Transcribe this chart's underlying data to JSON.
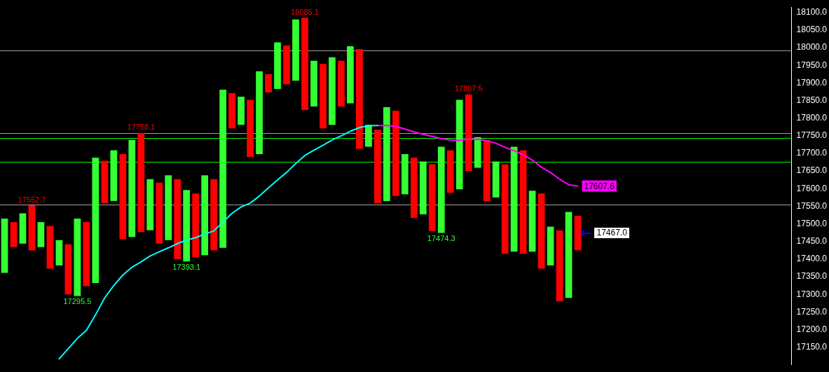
{
  "chart_data": {
    "type": "bar",
    "categories": [
      null,
      null,
      null,
      null,
      null,
      null,
      null,
      null,
      null,
      null,
      null,
      null,
      null,
      null,
      null,
      null,
      null,
      null,
      null,
      null,
      null,
      null,
      null,
      null,
      null,
      null,
      null,
      null,
      null,
      null,
      null,
      null,
      null,
      null,
      null,
      null,
      null,
      null,
      null,
      null,
      null,
      null,
      null,
      null,
      null,
      null,
      null,
      null,
      null,
      null,
      null,
      null,
      null,
      null,
      null,
      null,
      null,
      null,
      null,
      null,
      null,
      null,
      null,
      null,
      null,
      null,
      null,
      null,
      null,
      null,
      null,
      null,
      null,
      null,
      null,
      null,
      null,
      null,
      null,
      null,
      null,
      null,
      null,
      null,
      null,
      null,
      null
    ],
    "series": [
      {
        "values": [
          154,
          71,
          86,
          127.7,
          71,
          121,
          72,
          142,
          219.5,
          182,
          356,
          120,
          144,
          241,
          275,
          281.1,
          145,
          173,
          184,
          227,
          202.9,
          181,
          227,
          202,
          449,
          100,
          80,
          162,
          235,
          52,
          132,
          110,
          174,
          262.1,
          130,
          183,
          192,
          130,
          162,
          283,
          62,
          208,
          266,
          242,
          114,
          171,
          150,
          189,
          244.7,
          121,
          254,
          217.5,
          87,
          173,
          102,
          254,
          298,
          294,
          173,
          213,
          110,
          202,
          244,
          98,
          null,
          null,
          null,
          null,
          null,
          null,
          null,
          null,
          null,
          null,
          null,
          null,
          null,
          null,
          null,
          null,
          null,
          null,
          null,
          null,
          null,
          null,
          null
        ],
        "base": [
          17361,
          17434,
          17444,
          17425,
          17434,
          17373,
          17382,
          17300,
          17295.5,
          17323,
          17332,
          17559,
          17565,
          17457,
          17463,
          17477,
          17482,
          17444,
          17454,
          17400,
          17393.1,
          17405,
          17411,
          17425,
          17432,
          17771,
          17781,
          17690,
          17698,
          17873,
          17883,
          17896,
          17906,
          17823,
          17833,
          17771,
          17781,
          17833,
          17842,
          17713,
          17719,
          17559,
          17565,
          17579,
          17584,
          17517,
          17527,
          17480,
          17474.3,
          17588,
          17598,
          17650,
          17659,
          17565,
          17575,
          17415,
          17421,
          17415,
          17421,
          17373,
          17382,
          17280,
          17290,
          17425,
          null,
          null,
          null,
          null,
          null,
          null,
          null,
          null,
          null,
          null,
          null,
          null,
          null,
          null,
          null,
          null,
          null,
          null,
          null,
          null,
          null,
          null,
          null
        ],
        "value_labels": [
          null,
          null,
          null,
          "17552.7",
          null,
          null,
          null,
          null,
          null,
          null,
          null,
          null,
          null,
          null,
          null,
          "17758.1",
          null,
          null,
          null,
          null,
          null,
          null,
          null,
          null,
          null,
          null,
          null,
          null,
          null,
          null,
          null,
          null,
          null,
          "18085.1",
          null,
          null,
          null,
          null,
          null,
          null,
          null,
          null,
          null,
          null,
          null,
          null,
          null,
          null,
          null,
          null,
          null,
          "17867.5",
          null,
          null,
          null,
          null,
          null,
          null,
          null,
          null,
          null,
          null,
          null,
          null,
          null,
          null,
          null,
          null,
          null,
          null,
          null,
          null,
          null,
          null,
          null,
          null,
          null,
          null,
          null,
          null,
          null,
          null,
          null,
          null,
          null,
          null,
          null
        ],
        "colors": [
          "#33ff33",
          "#ff0000",
          "#33ff33",
          "#ff0000",
          "#33ff33",
          "#ff0000",
          "#33ff33",
          "#ff0000",
          "#33ff33",
          "#ff0000",
          "#33ff33",
          "#ff0000",
          "#33ff33",
          "#ff0000",
          "#33ff33",
          "#ff0000",
          "#33ff33",
          "#ff0000",
          "#33ff33",
          "#ff0000",
          "#33ff33",
          "#ff0000",
          "#33ff33",
          "#ff0000",
          "#33ff33",
          "#ff0000",
          "#33ff33",
          "#ff0000",
          "#33ff33",
          "#ff0000",
          "#33ff33",
          "#ff0000",
          "#33ff33",
          "#ff0000",
          "#33ff33",
          "#ff0000",
          "#33ff33",
          "#ff0000",
          "#33ff33",
          "#ff0000",
          "#33ff33",
          "#ff0000",
          "#33ff33",
          "#ff0000",
          "#33ff33",
          "#ff0000",
          "#33ff33",
          "#ff0000",
          "#33ff33",
          "#ff0000",
          "#33ff33",
          "#ff0000",
          "#33ff33",
          "#ff0000",
          "#33ff33",
          "#ff0000",
          "#33ff33",
          "#ff0000",
          "#33ff33",
          "#ff0000",
          "#33ff33",
          "#ff0000",
          "#33ff33",
          "#ff0000",
          null,
          null,
          null,
          null,
          null,
          null,
          null,
          null,
          null,
          null,
          null,
          null,
          null,
          null,
          null,
          null,
          null,
          null,
          null,
          null,
          null,
          null,
          null
        ]
      },
      {
        "type": "line",
        "color": "#00ffff",
        "values": [
          null,
          null,
          null,
          null,
          null,
          null,
          17117,
          17146,
          17175,
          17198,
          17242,
          17290,
          17325,
          17355,
          17377,
          17392,
          17409,
          17421,
          17432,
          17444,
          17454,
          17461,
          17471,
          17480,
          17505,
          17530,
          17548,
          17559,
          17579,
          17602,
          17625,
          17646,
          17671,
          17694,
          17709,
          17723,
          17738,
          17750,
          17763,
          17773,
          17779,
          17779,
          null,
          null,
          null,
          null,
          null,
          null,
          null,
          null,
          null,
          null,
          null,
          null,
          null,
          null,
          null,
          null,
          null,
          null,
          null,
          null,
          null,
          null,
          null,
          null,
          null,
          null,
          null,
          null,
          null,
          null,
          null,
          null,
          null,
          null,
          null,
          null,
          null,
          null,
          null,
          null,
          null,
          null,
          null,
          null,
          null
        ]
      },
      {
        "type": "line",
        "color": "#ff00ff",
        "values": [
          null,
          null,
          null,
          null,
          null,
          null,
          null,
          null,
          null,
          null,
          null,
          null,
          null,
          null,
          null,
          null,
          null,
          null,
          null,
          null,
          null,
          null,
          null,
          null,
          null,
          null,
          null,
          null,
          null,
          null,
          null,
          null,
          null,
          null,
          null,
          null,
          null,
          null,
          null,
          null,
          null,
          17779,
          17779,
          17777,
          17769,
          17761,
          17754,
          17748,
          17742,
          17738,
          17736,
          17740,
          17740,
          17736,
          17729,
          17717,
          17708,
          17696,
          17681,
          17661,
          17646,
          17627,
          17611,
          17607.6,
          null,
          null,
          null,
          null,
          null,
          null,
          null,
          null,
          null,
          null,
          null,
          null,
          null,
          null,
          null,
          null,
          null,
          null,
          null,
          null,
          null,
          null,
          null
        ],
        "value_labels": [
          null,
          null,
          null,
          null,
          null,
          null,
          null,
          null,
          null,
          null,
          null,
          null,
          null,
          null,
          null,
          null,
          null,
          null,
          null,
          null,
          null,
          null,
          null,
          null,
          null,
          null,
          null,
          null,
          null,
          null,
          null,
          null,
          null,
          null,
          null,
          null,
          null,
          null,
          null,
          null,
          null,
          null,
          null,
          null,
          null,
          null,
          null,
          null,
          null,
          null,
          null,
          null,
          null,
          null,
          null,
          null,
          null,
          null,
          null,
          null,
          null,
          null,
          null,
          "17607.6",
          null,
          null,
          null,
          null,
          null,
          null,
          null,
          null,
          null,
          null,
          null,
          null,
          null,
          null,
          null,
          null,
          null,
          null,
          null,
          null,
          null,
          null,
          null
        ]
      }
    ],
    "ylim": [
      17100,
      18115
    ],
    "yticks": [
      {
        "value": 17150,
        "label": "17150.0"
      },
      {
        "value": 17200,
        "label": "17200.0"
      },
      {
        "value": 17250,
        "label": "17250.0"
      },
      {
        "value": 17300,
        "label": "17300.0"
      },
      {
        "value": 17350,
        "label": "17350.0"
      },
      {
        "value": 17400,
        "label": "17400.0"
      },
      {
        "value": 17450,
        "label": "17450.0"
      },
      {
        "value": 17500,
        "label": "17500.0"
      },
      {
        "value": 17550,
        "label": "17550.0"
      },
      {
        "value": 17600,
        "label": "17600.0"
      },
      {
        "value": 17650,
        "label": "17650.0"
      },
      {
        "value": 17700,
        "label": "17700.0"
      },
      {
        "value": 17750,
        "label": "17750.0"
      },
      {
        "value": 17800,
        "label": "17800.0"
      },
      {
        "value": 17850,
        "label": "17850.0"
      },
      {
        "value": 17900,
        "label": "17900.0"
      },
      {
        "value": 17950,
        "label": "17950.0"
      },
      {
        "value": 18000,
        "label": "18000.0"
      },
      {
        "value": 18050,
        "label": "18050.0"
      },
      {
        "value": 18100,
        "label": "18100.0"
      }
    ],
    "ref_lines": [
      {
        "axis": "y",
        "value": 17992,
        "color": "#a0a0a0"
      },
      {
        "axis": "y",
        "value": 17758,
        "color": "#a0a0a0"
      },
      {
        "axis": "y",
        "value": 17744,
        "color": "#00ff00"
      },
      {
        "axis": "y",
        "value": 17677,
        "color": "#00ff00"
      },
      {
        "axis": "y",
        "value": 17554,
        "color": "#a0a0a0"
      }
    ],
    "annotations": [
      {
        "text": "17295.5",
        "y": 17295.5
      },
      {
        "text": "17393.1",
        "y": 17393.1
      },
      {
        "text": "17474.3",
        "y": 17474.3
      },
      "17467.0"
    ],
    "grid": false,
    "legend": false,
    "marker": "none",
    "line_style": "solid"
  }
}
